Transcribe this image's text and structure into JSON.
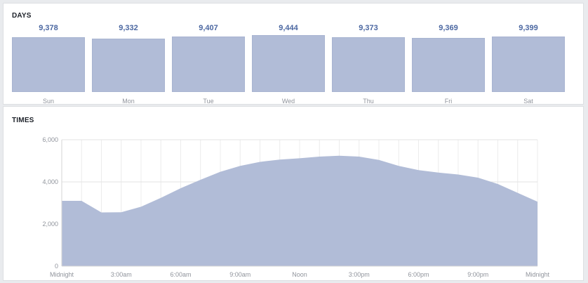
{
  "sections": {
    "days_title": "DAYS",
    "times_title": "TIMES"
  },
  "colors": {
    "bar_fill": "#b1bcd7",
    "value_text": "#4b67a1",
    "area_fill": "#b1bcd7",
    "grid": "#e5e5e5"
  },
  "chart_data": [
    {
      "type": "bar",
      "title": "DAYS",
      "categories": [
        "Sun",
        "Mon",
        "Tue",
        "Wed",
        "Thu",
        "Fri",
        "Sat"
      ],
      "values": [
        9378,
        9332,
        9407,
        9444,
        9373,
        9369,
        9399
      ],
      "value_labels": [
        "9,378",
        "9,332",
        "9,407",
        "9,444",
        "9,373",
        "9,369",
        "9,399"
      ]
    },
    {
      "type": "area",
      "title": "TIMES",
      "x": [
        0,
        1,
        2,
        3,
        4,
        5,
        6,
        7,
        8,
        9,
        10,
        11,
        12,
        13,
        14,
        15,
        16,
        17,
        18,
        19,
        20,
        21,
        22,
        23,
        24
      ],
      "values": [
        3100,
        3100,
        2550,
        2560,
        2820,
        3240,
        3700,
        4100,
        4480,
        4760,
        4950,
        5060,
        5120,
        5200,
        5240,
        5200,
        5040,
        4760,
        4560,
        4440,
        4350,
        4200,
        3900,
        3480,
        3060
      ],
      "ylim": [
        0,
        6000
      ],
      "yticks": [
        0,
        2000,
        4000,
        6000
      ],
      "ytick_labels": [
        "0",
        "2,000",
        "4,000",
        "6,000"
      ],
      "xticks": [
        0,
        3,
        6,
        9,
        12,
        15,
        18,
        21,
        24
      ],
      "xtick_labels": [
        "Midnight",
        "3:00am",
        "6:00am",
        "9:00am",
        "Noon",
        "3:00pm",
        "6:00pm",
        "9:00pm",
        "Midnight"
      ],
      "grid": true
    }
  ]
}
